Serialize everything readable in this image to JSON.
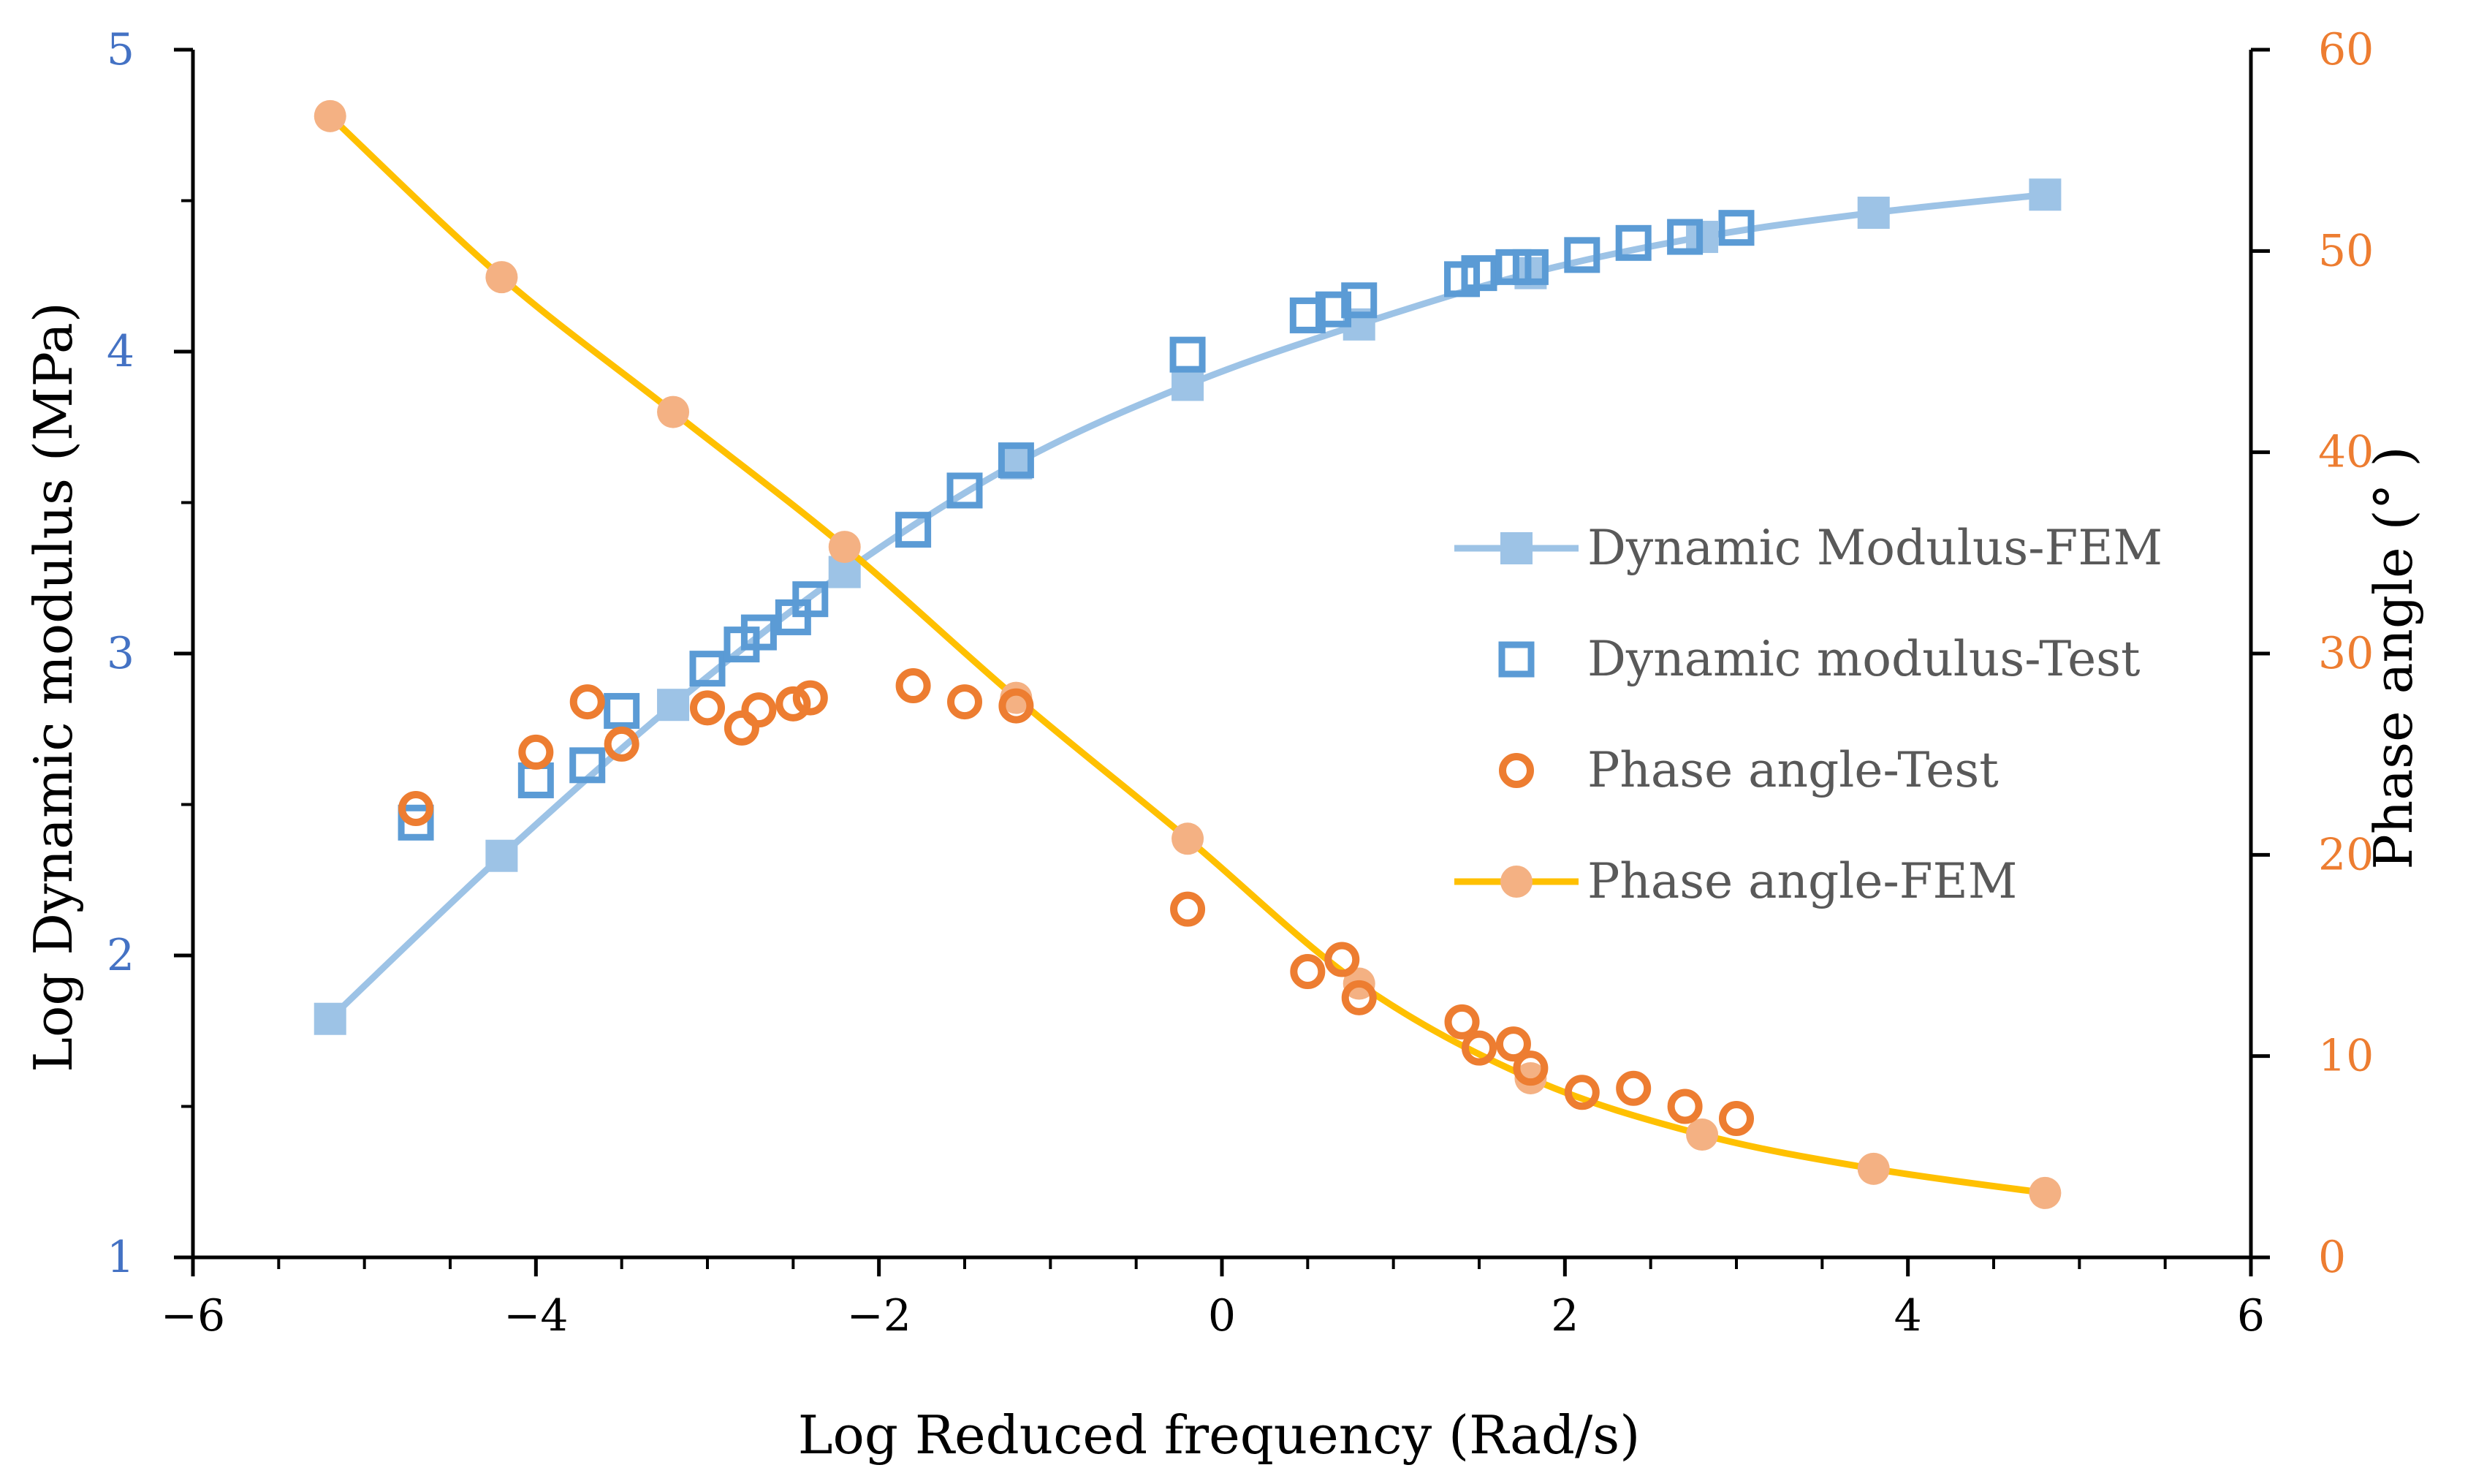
{
  "chart_data": {
    "type": "line+scatter (dual y-axis)",
    "title": "",
    "xlabel": "Log Reduced frequency (Rad/s)",
    "ylabel_left": "Log Dynamic modulus (MPa)",
    "ylabel_right": "Phase angle (° )",
    "xlim": [
      -6,
      6
    ],
    "ylim_left": [
      1,
      5
    ],
    "ylim_right": [
      0,
      60
    ],
    "x_ticks": [
      -6,
      -4,
      -2,
      0,
      2,
      4,
      6
    ],
    "x_tick_labels": [
      "−6",
      "−4",
      "−2",
      "0",
      "2",
      "4",
      "6"
    ],
    "y_left_ticks": [
      1,
      2,
      3,
      4,
      5
    ],
    "y_left_tick_labels": [
      "1",
      "2",
      "3",
      "4",
      "5"
    ],
    "y_right_ticks": [
      0,
      10,
      20,
      30,
      40,
      50,
      60
    ],
    "y_right_tick_labels": [
      "0",
      "10",
      "20",
      "30",
      "40",
      "50",
      "60"
    ],
    "grid": false,
    "legend_position": "center-right",
    "series": [
      {
        "name": "Dynamic Modulus-FEM",
        "axis": "left",
        "style": "line+filled-square",
        "color": "#9DC3E6",
        "x": [
          -5.2,
          -4.2,
          -3.2,
          -2.2,
          -1.2,
          -0.2,
          0.8,
          1.8,
          2.8,
          3.8,
          4.8
        ],
        "y": [
          1.79,
          2.33,
          2.83,
          3.27,
          3.63,
          3.89,
          4.09,
          4.26,
          4.38,
          4.46,
          4.52
        ]
      },
      {
        "name": "Dynamic modulus-Test",
        "axis": "left",
        "style": "open-square",
        "color": "#5B9BD5",
        "x": [
          -4.7,
          -4.0,
          -3.7,
          -3.5,
          -3.0,
          -2.8,
          -2.7,
          -2.5,
          -2.4,
          -1.8,
          -1.5,
          -1.2,
          -0.2,
          0.5,
          0.65,
          0.8,
          1.4,
          1.5,
          1.7,
          1.8,
          2.1,
          2.4,
          2.7,
          3.0
        ],
        "y": [
          2.44,
          2.58,
          2.63,
          2.81,
          2.95,
          3.03,
          3.07,
          3.12,
          3.18,
          3.41,
          3.54,
          3.64,
          3.99,
          4.12,
          4.14,
          4.17,
          4.24,
          4.26,
          4.28,
          4.28,
          4.32,
          4.36,
          4.38,
          4.41
        ]
      },
      {
        "name": "Phase angle-Test",
        "axis": "right",
        "style": "open-circle",
        "color": "#ED7D31",
        "x": [
          -4.7,
          -4.0,
          -3.7,
          -3.5,
          -3.0,
          -2.8,
          -2.7,
          -2.5,
          -2.4,
          -1.8,
          -1.5,
          -1.2,
          -0.2,
          0.5,
          0.7,
          0.8,
          1.4,
          1.5,
          1.7,
          1.8,
          2.1,
          2.4,
          2.7,
          3.0
        ],
        "y": [
          22.3,
          25.1,
          27.6,
          25.5,
          27.3,
          26.3,
          27.2,
          27.5,
          27.8,
          28.4,
          27.6,
          27.4,
          17.3,
          14.2,
          14.8,
          12.9,
          11.7,
          10.4,
          10.6,
          9.4,
          8.2,
          8.4,
          7.5,
          6.9
        ]
      },
      {
        "name": "Phase angle-FEM",
        "axis": "right",
        "style": "line+filled-circle",
        "color": "#FFC000",
        "marker_color": "#F4B183",
        "x": [
          -5.2,
          -4.2,
          -3.2,
          -2.2,
          -1.2,
          -0.2,
          0.8,
          1.8,
          2.8,
          3.8,
          4.8
        ],
        "y": [
          56.7,
          48.7,
          42.0,
          35.3,
          27.8,
          20.8,
          13.6,
          8.9,
          6.1,
          4.4,
          3.2
        ]
      }
    ]
  }
}
